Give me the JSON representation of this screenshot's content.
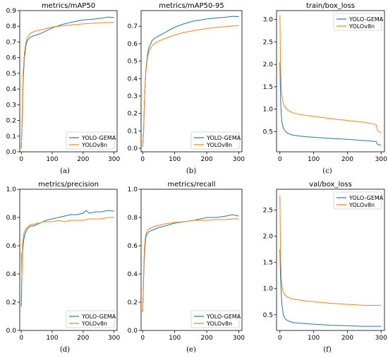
{
  "series_colors": {
    "YOLO-GEMA": "#1f77b4",
    "YOLOv8n": "#ff7f0e"
  },
  "chart_data": [
    {
      "type": "line",
      "title": "metrics/mAP50",
      "panel_label": "(a)",
      "xlim": [
        -5,
        310
      ],
      "ylim": [
        0,
        0.9
      ],
      "xticks": [
        0,
        100,
        200,
        300
      ],
      "yticks": [
        0.0,
        0.1,
        0.2,
        0.3,
        0.4,
        0.5,
        0.6,
        0.7,
        0.8,
        0.9
      ],
      "ytick_labels": [
        "0.0",
        "0.1",
        "0.2",
        "0.3",
        "0.4",
        "0.5",
        "0.6",
        "0.7",
        "0.8",
        "0.9"
      ],
      "legend": "bottom-right",
      "series": [
        {
          "name": "YOLO-GEMA",
          "x": [
            0,
            3,
            6,
            10,
            15,
            20,
            30,
            40,
            50,
            70,
            100,
            130,
            160,
            200,
            230,
            260,
            280,
            300
          ],
          "y": [
            0.02,
            0.2,
            0.45,
            0.6,
            0.68,
            0.71,
            0.73,
            0.74,
            0.745,
            0.76,
            0.79,
            0.81,
            0.825,
            0.84,
            0.845,
            0.852,
            0.858,
            0.857
          ]
        },
        {
          "name": "YOLOv8n",
          "x": [
            0,
            3,
            6,
            10,
            15,
            20,
            30,
            40,
            50,
            70,
            100,
            130,
            160,
            200,
            230,
            260,
            280,
            300
          ],
          "y": [
            0.02,
            0.25,
            0.5,
            0.63,
            0.7,
            0.73,
            0.755,
            0.765,
            0.772,
            0.78,
            0.795,
            0.802,
            0.808,
            0.815,
            0.819,
            0.822,
            0.824,
            0.826
          ]
        }
      ]
    },
    {
      "type": "line",
      "title": "metrics/mAP50-95",
      "panel_label": "(b)",
      "xlim": [
        -5,
        310
      ],
      "ylim": [
        -0.02,
        0.79
      ],
      "xticks": [
        0,
        100,
        200,
        300
      ],
      "yticks": [
        0.0,
        0.1,
        0.2,
        0.3,
        0.4,
        0.5,
        0.6,
        0.7
      ],
      "ytick_labels": [
        "0.0",
        "0.1",
        "0.2",
        "0.3",
        "0.4",
        "0.5",
        "0.6",
        "0.7"
      ],
      "legend": "bottom-right",
      "series": [
        {
          "name": "YOLO-GEMA",
          "x": [
            0,
            3,
            6,
            10,
            15,
            20,
            30,
            40,
            50,
            70,
            100,
            130,
            160,
            200,
            230,
            260,
            280,
            300
          ],
          "y": [
            0.01,
            0.1,
            0.3,
            0.45,
            0.54,
            0.58,
            0.62,
            0.635,
            0.645,
            0.665,
            0.695,
            0.715,
            0.73,
            0.742,
            0.748,
            0.752,
            0.757,
            0.755
          ]
        },
        {
          "name": "YOLOv8n",
          "x": [
            0,
            3,
            6,
            10,
            15,
            20,
            30,
            40,
            50,
            70,
            100,
            130,
            160,
            200,
            230,
            260,
            280,
            300
          ],
          "y": [
            0.01,
            0.1,
            0.3,
            0.44,
            0.52,
            0.56,
            0.59,
            0.605,
            0.615,
            0.63,
            0.65,
            0.665,
            0.675,
            0.688,
            0.694,
            0.698,
            0.702,
            0.703
          ]
        }
      ]
    },
    {
      "type": "line",
      "title": "train/box_loss",
      "panel_label": "(c)",
      "xlim": [
        -10,
        310
      ],
      "ylim": [
        0.05,
        3.2
      ],
      "xticks": [
        0,
        100,
        200,
        300
      ],
      "yticks": [
        0.5,
        1.0,
        1.5,
        2.0,
        2.5,
        3.0
      ],
      "ytick_labels": [
        "0.5",
        "1.0",
        "1.5",
        "2.0",
        "2.5",
        "3.0"
      ],
      "legend": "top-right",
      "series": [
        {
          "name": "YOLO-GEMA",
          "x": [
            0,
            2,
            4,
            6,
            8,
            10,
            15,
            20,
            30,
            40,
            60,
            80,
            100,
            150,
            200,
            250,
            285,
            290,
            300
          ],
          "y": [
            2.05,
            1.2,
            0.9,
            0.72,
            0.64,
            0.58,
            0.52,
            0.48,
            0.44,
            0.42,
            0.4,
            0.385,
            0.375,
            0.35,
            0.33,
            0.3,
            0.28,
            0.21,
            0.2
          ]
        },
        {
          "name": "YOLOv8n",
          "x": [
            0,
            2,
            4,
            6,
            8,
            10,
            15,
            20,
            30,
            40,
            60,
            80,
            100,
            150,
            200,
            250,
            285,
            290,
            300
          ],
          "y": [
            3.1,
            1.9,
            1.5,
            1.3,
            1.2,
            1.12,
            1.05,
            1.0,
            0.95,
            0.92,
            0.88,
            0.86,
            0.84,
            0.79,
            0.75,
            0.71,
            0.66,
            0.52,
            0.48
          ]
        }
      ]
    },
    {
      "type": "line",
      "title": "metrics/precision",
      "panel_label": "(d)",
      "xlim": [
        -5,
        310
      ],
      "ylim": [
        0,
        1.0
      ],
      "xticks": [
        0,
        100,
        200,
        300
      ],
      "yticks": [
        0.0,
        0.2,
        0.4,
        0.6,
        0.8,
        1.0
      ],
      "ytick_labels": [
        "0.0",
        "0.2",
        "0.4",
        "0.6",
        "0.8",
        "1.0"
      ],
      "legend": "bottom-right",
      "series": [
        {
          "name": "YOLO-GEMA",
          "x": [
            0,
            2,
            4,
            6,
            8,
            10,
            15,
            20,
            30,
            40,
            50,
            60,
            70,
            80,
            100,
            120,
            140,
            160,
            180,
            200,
            210,
            220,
            240,
            260,
            280,
            300
          ],
          "y": [
            0.17,
            0.4,
            0.55,
            0.6,
            0.64,
            0.67,
            0.7,
            0.72,
            0.74,
            0.74,
            0.75,
            0.76,
            0.77,
            0.78,
            0.79,
            0.8,
            0.81,
            0.82,
            0.82,
            0.83,
            0.85,
            0.83,
            0.84,
            0.84,
            0.85,
            0.845
          ]
        },
        {
          "name": "YOLOv8n",
          "x": [
            0,
            2,
            4,
            6,
            8,
            10,
            15,
            20,
            30,
            40,
            50,
            60,
            70,
            80,
            100,
            120,
            140,
            160,
            180,
            200,
            220,
            240,
            260,
            280,
            300
          ],
          "y": [
            0.55,
            0.38,
            0.6,
            0.65,
            0.68,
            0.7,
            0.72,
            0.73,
            0.75,
            0.75,
            0.76,
            0.76,
            0.77,
            0.77,
            0.77,
            0.78,
            0.77,
            0.78,
            0.78,
            0.78,
            0.79,
            0.79,
            0.79,
            0.8,
            0.8
          ]
        }
      ]
    },
    {
      "type": "line",
      "title": "metrics/recall",
      "panel_label": "(e)",
      "xlim": [
        -5,
        310
      ],
      "ylim": [
        0,
        1.0
      ],
      "xticks": [
        0,
        100,
        200,
        300
      ],
      "yticks": [
        0.0,
        0.2,
        0.4,
        0.6,
        0.8,
        1.0
      ],
      "ytick_labels": [
        "0.0",
        "0.2",
        "0.4",
        "0.6",
        "0.8",
        "1.0"
      ],
      "legend": "bottom-right",
      "series": [
        {
          "name": "YOLO-GEMA",
          "x": [
            0,
            2,
            4,
            6,
            8,
            10,
            15,
            20,
            30,
            40,
            50,
            70,
            100,
            130,
            160,
            200,
            230,
            260,
            280,
            300
          ],
          "y": [
            0.13,
            0.3,
            0.45,
            0.55,
            0.62,
            0.66,
            0.69,
            0.7,
            0.71,
            0.72,
            0.73,
            0.74,
            0.76,
            0.77,
            0.78,
            0.8,
            0.8,
            0.81,
            0.82,
            0.81
          ]
        },
        {
          "name": "YOLOv8n",
          "x": [
            0,
            2,
            4,
            6,
            8,
            10,
            15,
            20,
            30,
            40,
            50,
            70,
            100,
            130,
            160,
            200,
            230,
            260,
            280,
            300
          ],
          "y": [
            0.13,
            0.32,
            0.5,
            0.6,
            0.65,
            0.68,
            0.71,
            0.72,
            0.73,
            0.74,
            0.745,
            0.755,
            0.765,
            0.77,
            0.78,
            0.78,
            0.785,
            0.785,
            0.79,
            0.79
          ]
        }
      ]
    },
    {
      "type": "line",
      "title": "val/box_loss",
      "panel_label": "(f)",
      "xlim": [
        -10,
        310
      ],
      "ylim": [
        0.2,
        2.9
      ],
      "xticks": [
        0,
        100,
        200,
        300
      ],
      "yticks": [
        0.5,
        1.0,
        1.5,
        2.0,
        2.5
      ],
      "ytick_labels": [
        "0.5",
        "1.0",
        "1.5",
        "2.0",
        "2.5"
      ],
      "legend": "top-right",
      "series": [
        {
          "name": "YOLO-GEMA",
          "x": [
            0,
            2,
            4,
            6,
            8,
            10,
            15,
            20,
            30,
            40,
            60,
            80,
            100,
            150,
            200,
            250,
            300
          ],
          "y": [
            1.75,
            1.2,
            0.9,
            0.7,
            0.6,
            0.5,
            0.43,
            0.4,
            0.37,
            0.35,
            0.34,
            0.33,
            0.32,
            0.3,
            0.29,
            0.28,
            0.28
          ]
        },
        {
          "name": "YOLOv8n",
          "x": [
            0,
            2,
            4,
            6,
            8,
            10,
            15,
            20,
            30,
            40,
            60,
            80,
            100,
            150,
            200,
            250,
            300
          ],
          "y": [
            2.78,
            1.6,
            1.2,
            1.05,
            0.98,
            0.93,
            0.88,
            0.85,
            0.82,
            0.8,
            0.78,
            0.76,
            0.75,
            0.72,
            0.7,
            0.68,
            0.68
          ]
        }
      ]
    }
  ]
}
